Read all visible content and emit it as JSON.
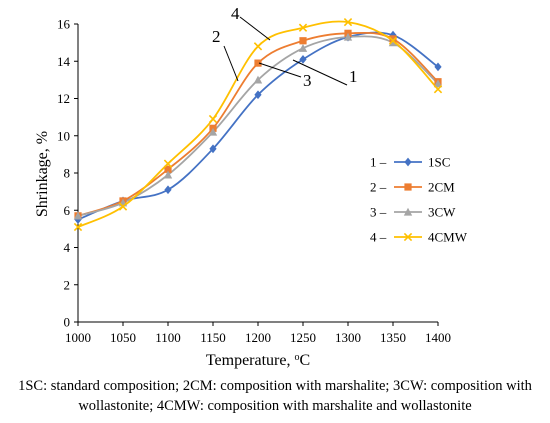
{
  "chart_data": {
    "type": "line",
    "xlabel": "Temperature, ",
    "xlabel_unit_sup": "o",
    "xlabel_unit": "C",
    "ylabel": "Shrinkage, %",
    "x": [
      1000,
      1050,
      1100,
      1150,
      1200,
      1250,
      1300,
      1350,
      1400
    ],
    "xlim": [
      1000,
      1400
    ],
    "ylim": [
      0,
      16
    ],
    "yticks": [
      0,
      2,
      4,
      6,
      8,
      10,
      12,
      14,
      16
    ],
    "grid": false,
    "legend_position": "right",
    "series": [
      {
        "name": "1SC",
        "legend_prefix": "1 –",
        "color": "#4472C4",
        "marker": "diamond",
        "values": [
          5.5,
          6.5,
          7.1,
          9.3,
          12.2,
          14.1,
          15.3,
          15.4,
          13.7
        ]
      },
      {
        "name": "2CM",
        "legend_prefix": "2 –",
        "color": "#ED7D31",
        "marker": "square",
        "values": [
          5.7,
          6.5,
          8.2,
          10.4,
          13.9,
          15.1,
          15.5,
          15.2,
          12.9
        ]
      },
      {
        "name": "3CW",
        "legend_prefix": "3 –",
        "color": "#A5A5A5",
        "marker": "triangle",
        "values": [
          5.7,
          6.4,
          7.9,
          10.2,
          13.0,
          14.7,
          15.3,
          15.0,
          12.8
        ]
      },
      {
        "name": "4CMW",
        "legend_prefix": "4 –",
        "color": "#FFC000",
        "marker": "x",
        "values": [
          5.1,
          6.2,
          8.5,
          10.9,
          14.8,
          15.8,
          16.1,
          15.1,
          12.5
        ]
      }
    ],
    "annotations": [
      {
        "text": "1",
        "series": 0
      },
      {
        "text": "2",
        "series": 1
      },
      {
        "text": "3",
        "series": 2
      },
      {
        "text": "4",
        "series": 3
      }
    ]
  },
  "caption": "1SC: standard composition; 2CM: composition with marshalite; 3CW: composition with wollastonite; 4CMW: composition with marshalite and wollastonite"
}
